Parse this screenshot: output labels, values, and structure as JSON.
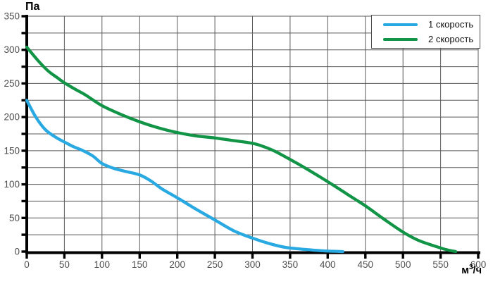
{
  "labels": {
    "y_unit": "Па",
    "x_unit_base": "м",
    "x_unit_sup": "3",
    "x_unit_rest": "/ч"
  },
  "colors": {
    "speed1": "#29A9E1",
    "speed2": "#129447",
    "grid": "#595959",
    "axis": "#000000",
    "tick_label": "#4d4d4d",
    "legend_border": "#4a4a4a",
    "background": "#ffffff"
  },
  "legend": {
    "items": [
      {
        "label": "1 скорость",
        "color": "#29A9E1"
      },
      {
        "label": "2 скорость",
        "color": "#129447"
      }
    ]
  },
  "chart_data": {
    "type": "line",
    "title": "",
    "xlabel": "м³/ч",
    "ylabel": "Па",
    "xlim": [
      0,
      600
    ],
    "ylim": [
      0,
      350
    ],
    "x_tick_step": 50,
    "y_tick_step": 50,
    "x_grid_step": 50,
    "y_grid_step": 25,
    "grid": true,
    "legend_position": "top-right",
    "series": [
      {
        "name": "1 скорость",
        "color": "#29A9E1",
        "points": [
          [
            0,
            225
          ],
          [
            12,
            200
          ],
          [
            25,
            181
          ],
          [
            40,
            169
          ],
          [
            50,
            163
          ],
          [
            62,
            156
          ],
          [
            75,
            150
          ],
          [
            88,
            142
          ],
          [
            100,
            131
          ],
          [
            115,
            124
          ],
          [
            132,
            119
          ],
          [
            150,
            114
          ],
          [
            165,
            105
          ],
          [
            180,
            93
          ],
          [
            200,
            80
          ],
          [
            225,
            63
          ],
          [
            250,
            47
          ],
          [
            275,
            31
          ],
          [
            300,
            20
          ],
          [
            322,
            12
          ],
          [
            345,
            6
          ],
          [
            372,
            3
          ],
          [
            395,
            1
          ],
          [
            420,
            0
          ]
        ]
      },
      {
        "name": "2 скорость",
        "color": "#129447",
        "points": [
          [
            0,
            304
          ],
          [
            15,
            284
          ],
          [
            28,
            269
          ],
          [
            40,
            259
          ],
          [
            50,
            251
          ],
          [
            65,
            241
          ],
          [
            78,
            233
          ],
          [
            100,
            217
          ],
          [
            125,
            204
          ],
          [
            150,
            193
          ],
          [
            175,
            184
          ],
          [
            200,
            177
          ],
          [
            225,
            172
          ],
          [
            250,
            169
          ],
          [
            275,
            165
          ],
          [
            300,
            161
          ],
          [
            315,
            156
          ],
          [
            330,
            149
          ],
          [
            350,
            137
          ],
          [
            372,
            123
          ],
          [
            400,
            104
          ],
          [
            425,
            86
          ],
          [
            450,
            68
          ],
          [
            475,
            48
          ],
          [
            500,
            29
          ],
          [
            520,
            17
          ],
          [
            540,
            9
          ],
          [
            557,
            3
          ],
          [
            570,
            0
          ]
        ]
      }
    ]
  }
}
